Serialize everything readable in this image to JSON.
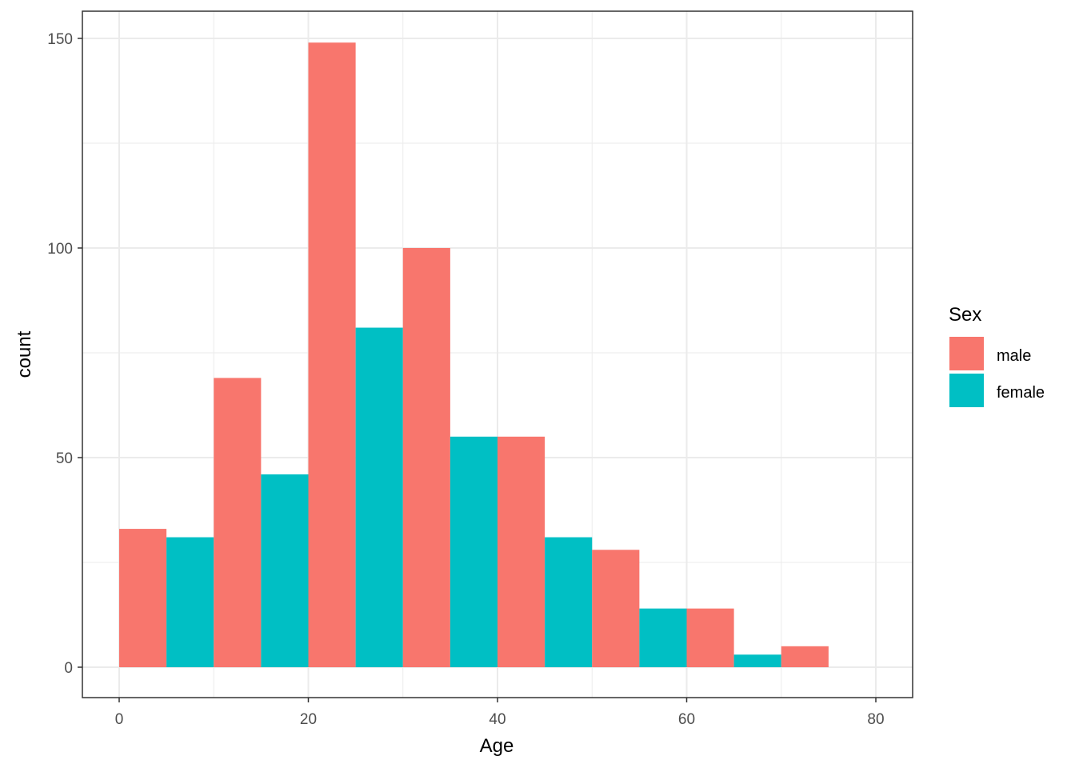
{
  "chart_data": {
    "type": "bar",
    "subtype": "histogram-dodged",
    "title": "",
    "xlabel": "Age",
    "ylabel": "count",
    "xlim": [
      -5,
      85
    ],
    "ylim": [
      -7,
      157
    ],
    "x_ticks": [
      0,
      20,
      40,
      60,
      80
    ],
    "y_ticks": [
      0,
      50,
      100,
      150
    ],
    "grid": true,
    "legend_position": "right",
    "legend": {
      "title": "Sex",
      "entries": [
        {
          "label": "male",
          "color": "#F8766D"
        },
        {
          "label": "female",
          "color": "#00BFC4"
        }
      ]
    },
    "bars": [
      {
        "x0": 0,
        "x1": 5,
        "series": "male",
        "value": 33
      },
      {
        "x0": 5,
        "x1": 10,
        "series": "female",
        "value": 31
      },
      {
        "x0": 10,
        "x1": 15,
        "series": "male",
        "value": 69
      },
      {
        "x0": 15,
        "x1": 20,
        "series": "female",
        "value": 46
      },
      {
        "x0": 20,
        "x1": 25,
        "series": "male",
        "value": 149
      },
      {
        "x0": 25,
        "x1": 30,
        "series": "female",
        "value": 81
      },
      {
        "x0": 30,
        "x1": 35,
        "series": "male",
        "value": 100
      },
      {
        "x0": 35,
        "x1": 40,
        "series": "female",
        "value": 55
      },
      {
        "x0": 40,
        "x1": 45,
        "series": "male",
        "value": 55
      },
      {
        "x0": 45,
        "x1": 50,
        "series": "female",
        "value": 31
      },
      {
        "x0": 50,
        "x1": 55,
        "series": "male",
        "value": 28
      },
      {
        "x0": 55,
        "x1": 60,
        "series": "female",
        "value": 14
      },
      {
        "x0": 60,
        "x1": 65,
        "series": "male",
        "value": 14
      },
      {
        "x0": 65,
        "x1": 70,
        "series": "female",
        "value": 3
      },
      {
        "x0": 70,
        "x1": 75,
        "series": "male",
        "value": 5
      }
    ],
    "series": [
      {
        "name": "male",
        "color": "#F8766D"
      },
      {
        "name": "female",
        "color": "#00BFC4"
      }
    ]
  },
  "colors": {
    "grid": "#EBEBEB",
    "panel_border": "#333333",
    "tick_text": "#4D4D4D"
  }
}
